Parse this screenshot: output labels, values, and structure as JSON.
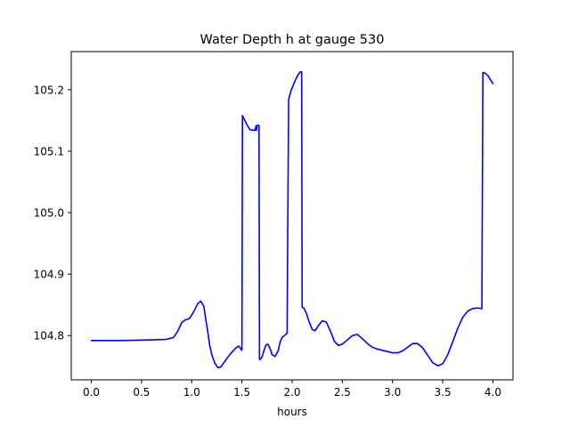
{
  "chart_data": {
    "type": "line",
    "title": "Water Depth h at gauge 530",
    "xlabel": "hours",
    "ylabel": "",
    "xlim": [
      -0.2,
      4.2
    ],
    "ylim": [
      104.728,
      105.262
    ],
    "xticks": [
      0.0,
      0.5,
      1.0,
      1.5,
      2.0,
      2.5,
      3.0,
      3.5,
      4.0
    ],
    "xtick_labels": [
      "0.0",
      "0.5",
      "1.0",
      "1.5",
      "2.0",
      "2.5",
      "3.0",
      "3.5",
      "4.0"
    ],
    "yticks": [
      104.8,
      104.9,
      105.0,
      105.1,
      105.2
    ],
    "ytick_labels": [
      "104.8",
      "104.9",
      "105.0",
      "105.1",
      "105.2"
    ],
    "grid": false,
    "series": [
      {
        "color": "#0000ff",
        "x": [
          0.0,
          0.3,
          0.6,
          0.75,
          0.82,
          0.86,
          0.9,
          0.93,
          0.98,
          1.02,
          1.06,
          1.09,
          1.12,
          1.14,
          1.16,
          1.18,
          1.2,
          1.23,
          1.26,
          1.29,
          1.32,
          1.36,
          1.4,
          1.44,
          1.47,
          1.49,
          1.5,
          1.505,
          1.52,
          1.55,
          1.58,
          1.61,
          1.63,
          1.64,
          1.645,
          1.65,
          1.66,
          1.67,
          1.675,
          1.68,
          1.7,
          1.72,
          1.74,
          1.76,
          1.78,
          1.8,
          1.83,
          1.86,
          1.88,
          1.9,
          1.93,
          1.95,
          1.965,
          1.97,
          1.975,
          1.99,
          2.02,
          2.05,
          2.08,
          2.095,
          2.1,
          2.12,
          2.14,
          2.17,
          2.2,
          2.23,
          2.26,
          2.3,
          2.34,
          2.38,
          2.42,
          2.46,
          2.5,
          2.55,
          2.6,
          2.65,
          2.7,
          2.75,
          2.8,
          2.85,
          2.9,
          2.95,
          3.0,
          3.05,
          3.1,
          3.15,
          3.2,
          3.25,
          3.3,
          3.35,
          3.4,
          3.45,
          3.5,
          3.55,
          3.6,
          3.65,
          3.7,
          3.75,
          3.8,
          3.85,
          3.88,
          3.89,
          3.9,
          3.92,
          3.95,
          3.98,
          4.0
        ],
        "y": [
          104.792,
          104.792,
          104.793,
          104.794,
          104.797,
          104.807,
          104.821,
          104.825,
          104.828,
          104.839,
          104.852,
          104.856,
          104.848,
          104.826,
          104.806,
          104.783,
          104.769,
          104.755,
          104.748,
          104.749,
          104.756,
          104.765,
          104.773,
          104.78,
          104.783,
          104.778,
          104.776,
          105.158,
          105.153,
          105.143,
          105.135,
          105.134,
          105.134,
          105.141,
          105.134,
          105.142,
          105.142,
          105.142,
          104.762,
          104.761,
          104.765,
          104.776,
          104.785,
          104.786,
          104.779,
          104.769,
          104.766,
          104.775,
          104.789,
          104.797,
          104.801,
          104.804,
          105.184,
          105.187,
          105.19,
          105.199,
          105.211,
          105.222,
          105.229,
          105.229,
          104.846,
          104.844,
          104.837,
          104.822,
          104.81,
          104.808,
          104.816,
          104.824,
          104.822,
          104.808,
          104.791,
          104.784,
          104.786,
          104.793,
          104.8,
          104.802,
          104.795,
          104.787,
          104.781,
          104.778,
          104.776,
          104.774,
          104.772,
          104.772,
          104.775,
          104.781,
          104.787,
          104.787,
          104.78,
          104.768,
          104.756,
          104.751,
          104.754,
          104.769,
          104.79,
          104.812,
          104.83,
          104.84,
          104.844,
          104.845,
          104.844,
          104.844,
          105.228,
          105.227,
          105.223,
          105.215,
          105.21
        ]
      }
    ]
  }
}
